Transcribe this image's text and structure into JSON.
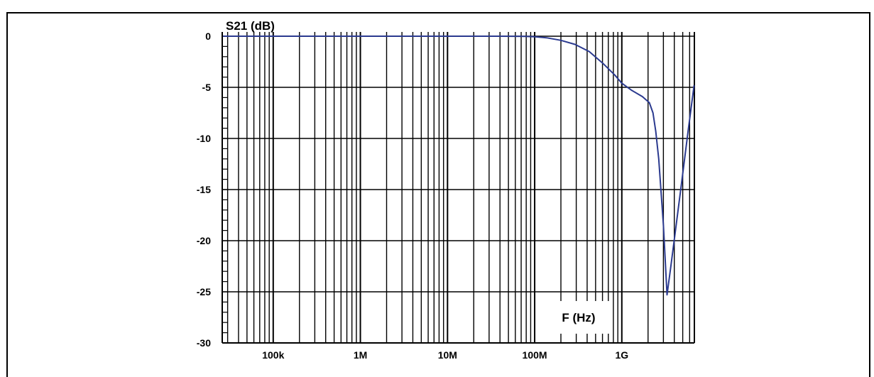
{
  "chart_data": {
    "type": "line",
    "xlabel": "F (Hz)",
    "ylabel": "S21 (dB)",
    "x_scale": "log",
    "xlim": [
      26000,
      6800000000
    ],
    "ylim": [
      -30,
      0
    ],
    "grid": true,
    "xticks": [
      {
        "value": 100000,
        "label": "100k"
      },
      {
        "value": 1000000,
        "label": "1M"
      },
      {
        "value": 10000000,
        "label": "10M"
      },
      {
        "value": 100000000,
        "label": "100M"
      },
      {
        "value": 1000000000,
        "label": "1G"
      }
    ],
    "yticks": [
      {
        "value": 0,
        "label": "0"
      },
      {
        "value": -5,
        "label": "-5"
      },
      {
        "value": -10,
        "label": "-10"
      },
      {
        "value": -15,
        "label": "-15"
      },
      {
        "value": -20,
        "label": "-20"
      },
      {
        "value": -25,
        "label": "-25"
      },
      {
        "value": -30,
        "label": "-30"
      }
    ],
    "series": [
      {
        "color": "#2b3a8f",
        "x": [
          26500,
          10000000,
          40000000,
          78000000,
          100000000,
          137000000,
          200000000,
          290000000,
          423000000,
          615000000,
          830000000,
          1000000000,
          1300000000,
          1720000000,
          2070000000,
          2280000000,
          2450000000,
          2650000000,
          3000000000,
          3300000000,
          3640000000,
          4000000000,
          4820000000,
          5800000000,
          6750000000
        ],
        "y": [
          0,
          0,
          0,
          -0.02,
          -0.05,
          -0.15,
          -0.4,
          -0.8,
          -1.5,
          -2.7,
          -3.8,
          -4.6,
          -5.3,
          -5.9,
          -6.5,
          -7.5,
          -9.3,
          -12,
          -18.5,
          -25.3,
          -22.6,
          -19.9,
          -14.5,
          -9.1,
          -4.8
        ]
      }
    ]
  }
}
